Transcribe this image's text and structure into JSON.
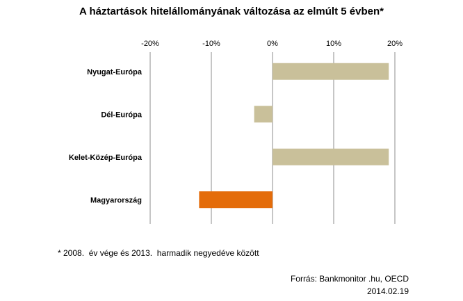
{
  "chart_data": {
    "type": "bar",
    "orientation": "horizontal",
    "title": "A háztartások hitelállományának változása az elmúlt 5 évben*",
    "categories": [
      "Nyugat-Európa",
      "Dél-Európa",
      "Kelet-Közép-Európa",
      "Magyarország"
    ],
    "values": [
      19,
      -3,
      19,
      -12
    ],
    "unit": "%",
    "xlim": [
      -20,
      20
    ],
    "xticks": [
      -20,
      -10,
      0,
      10,
      20
    ],
    "xtick_labels": [
      "-20%",
      "-10%",
      "0%",
      "10%",
      "20%"
    ],
    "x_axis_position": "top",
    "grid": true,
    "legend": "none",
    "bar_colors": [
      "#c9c09a",
      "#c9c09a",
      "#c9c09a",
      "#e46c0a"
    ]
  },
  "footnote": "* 2008.  év vége és 2013.  harmadik negyedéve között",
  "source": "Forrás: Bankmonitor .hu, OECD",
  "date": "2014.02.19"
}
